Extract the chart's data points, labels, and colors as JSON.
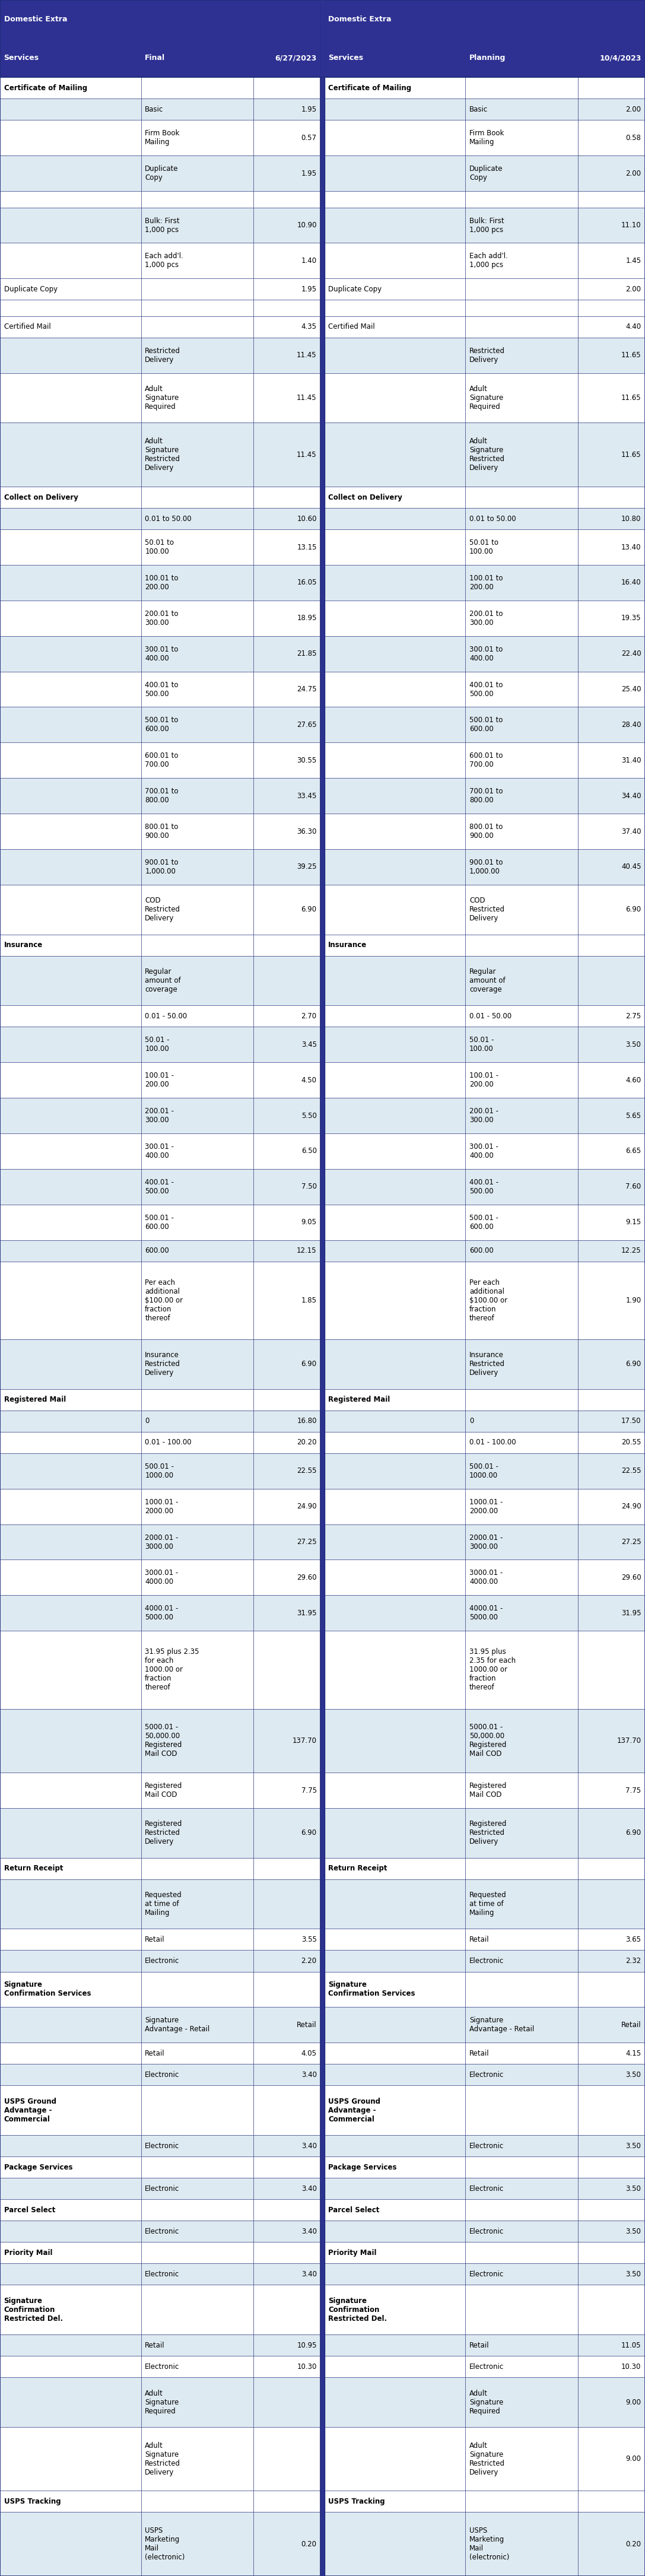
{
  "header_bg": "#2e3192",
  "header_text": "#ffffff",
  "row_bg_light": "#deeaf1",
  "row_bg_white": "#ffffff",
  "border_color": "#1f2d7a",
  "text_color": "#000000",
  "FIG_W": 10.87,
  "FIG_H": 43.41,
  "rows": [
    {
      "type": "section",
      "col1": "Certificate of Mailing",
      "col4": "Certificate of Mailing",
      "shade": false
    },
    {
      "type": "data",
      "col2": "Basic",
      "col3": "1.95",
      "col5": "Basic",
      "col6": "2.00",
      "shade": true
    },
    {
      "type": "data",
      "col2": "Firm Book\nMailing",
      "col3": "0.57",
      "col5": "Firm Book\nMailing",
      "col6": "0.58",
      "shade": false
    },
    {
      "type": "data",
      "col2": "Duplicate\nCopy",
      "col3": "1.95",
      "col5": "Duplicate\nCopy",
      "col6": "2.00",
      "shade": true
    },
    {
      "type": "empty",
      "shade": false
    },
    {
      "type": "data",
      "col2": "Bulk: First\n1,000 pcs",
      "col3": "10.90",
      "col5": "Bulk: First\n1,000 pcs",
      "col6": "11.10",
      "shade": true
    },
    {
      "type": "data",
      "col2": "Each add'l.\n1,000 pcs",
      "col3": "1.40",
      "col5": "Each add'l.\n1,000 pcs",
      "col6": "1.45",
      "shade": false
    },
    {
      "type": "section_val",
      "col1": "Duplicate Copy",
      "col3": "1.95",
      "col4": "Duplicate Copy",
      "col6": "2.00",
      "shade": false
    },
    {
      "type": "empty",
      "shade": false
    },
    {
      "type": "section_val",
      "col1": "Certified Mail",
      "col3": "4.35",
      "col4": "Certified Mail",
      "col6": "4.40",
      "shade": false
    },
    {
      "type": "data",
      "col2": "Restricted\nDelivery",
      "col3": "11.45",
      "col5": "Restricted\nDelivery",
      "col6": "11.65",
      "shade": true
    },
    {
      "type": "data",
      "col2": "Adult\nSignature\nRequired",
      "col3": "11.45",
      "col5": "Adult\nSignature\nRequired",
      "col6": "11.65",
      "shade": false
    },
    {
      "type": "data",
      "col2": "Adult\nSignature\nRestricted\nDelivery",
      "col3": "11.45",
      "col5": "Adult\nSignature\nRestricted\nDelivery",
      "col6": "11.65",
      "shade": true
    },
    {
      "type": "section",
      "col1": "Collect on Delivery",
      "col4": "Collect on Delivery",
      "shade": false
    },
    {
      "type": "data",
      "col2": "0.01 to 50.00",
      "col3": "10.60",
      "col5": "0.01 to 50.00",
      "col6": "10.80",
      "shade": true
    },
    {
      "type": "data",
      "col2": "50.01 to\n100.00",
      "col3": "13.15",
      "col5": "50.01 to\n100.00",
      "col6": "13.40",
      "shade": false
    },
    {
      "type": "data",
      "col2": "100.01 to\n200.00",
      "col3": "16.05",
      "col5": "100.01 to\n200.00",
      "col6": "16.40",
      "shade": true
    },
    {
      "type": "data",
      "col2": "200.01 to\n300.00",
      "col3": "18.95",
      "col5": "200.01 to\n300.00",
      "col6": "19.35",
      "shade": false
    },
    {
      "type": "data",
      "col2": "300.01 to\n400.00",
      "col3": "21.85",
      "col5": "300.01 to\n400.00",
      "col6": "22.40",
      "shade": true
    },
    {
      "type": "data",
      "col2": "400.01 to\n500.00",
      "col3": "24.75",
      "col5": "400.01 to\n500.00",
      "col6": "25.40",
      "shade": false
    },
    {
      "type": "data",
      "col2": "500.01 to\n600.00",
      "col3": "27.65",
      "col5": "500.01 to\n600.00",
      "col6": "28.40",
      "shade": true
    },
    {
      "type": "data",
      "col2": "600.01 to\n700.00",
      "col3": "30.55",
      "col5": "600.01 to\n700.00",
      "col6": "31.40",
      "shade": false
    },
    {
      "type": "data",
      "col2": "700.01 to\n800.00",
      "col3": "33.45",
      "col5": "700.01 to\n800.00",
      "col6": "34.40",
      "shade": true
    },
    {
      "type": "data",
      "col2": "800.01 to\n900.00",
      "col3": "36.30",
      "col5": "800.01 to\n900.00",
      "col6": "37.40",
      "shade": false
    },
    {
      "type": "data",
      "col2": "900.01 to\n1,000.00",
      "col3": "39.25",
      "col5": "900.01 to\n1,000.00",
      "col6": "40.45",
      "shade": true
    },
    {
      "type": "data",
      "col2": "COD\nRestricted\nDelivery",
      "col3": "6.90",
      "col5": "COD\nRestricted\nDelivery",
      "col6": "6.90",
      "shade": false
    },
    {
      "type": "section",
      "col1": "Insurance",
      "col4": "Insurance",
      "shade": false
    },
    {
      "type": "data",
      "col2": "Regular\namount of\ncoverage",
      "col3": "",
      "col5": "Regular\namount of\ncoverage",
      "col6": "",
      "shade": true
    },
    {
      "type": "data",
      "col2": "0.01 - 50.00",
      "col3": "2.70",
      "col5": "0.01 - 50.00",
      "col6": "2.75",
      "shade": false
    },
    {
      "type": "data",
      "col2": "50.01 -\n100.00",
      "col3": "3.45",
      "col5": "50.01 -\n100.00",
      "col6": "3.50",
      "shade": true
    },
    {
      "type": "data",
      "col2": "100.01 -\n200.00",
      "col3": "4.50",
      "col5": "100.01 -\n200.00",
      "col6": "4.60",
      "shade": false
    },
    {
      "type": "data",
      "col2": "200.01 -\n300.00",
      "col3": "5.50",
      "col5": "200.01 -\n300.00",
      "col6": "5.65",
      "shade": true
    },
    {
      "type": "data",
      "col2": "300.01 -\n400.00",
      "col3": "6.50",
      "col5": "300.01 -\n400.00",
      "col6": "6.65",
      "shade": false
    },
    {
      "type": "data",
      "col2": "400.01 -\n500.00",
      "col3": "7.50",
      "col5": "400.01 -\n500.00",
      "col6": "7.60",
      "shade": true
    },
    {
      "type": "data",
      "col2": "500.01 -\n600.00",
      "col3": "9.05",
      "col5": "500.01 -\n600.00",
      "col6": "9.15",
      "shade": false
    },
    {
      "type": "data",
      "col2": "600.00",
      "col3": "12.15",
      "col5": "600.00",
      "col6": "12.25",
      "shade": true
    },
    {
      "type": "data",
      "col2": "Per each\nadditional\n$100.00 or\nfraction\nthereof",
      "col3": "1.85",
      "col5": "Per each\nadditional\n$100.00 or\nfraction\nthereof",
      "col6": "1.90",
      "shade": false
    },
    {
      "type": "data",
      "col2": "Insurance\nRestricted\nDelivery",
      "col3": "6.90",
      "col5": "Insurance\nRestricted\nDelivery",
      "col6": "6.90",
      "shade": true
    },
    {
      "type": "section",
      "col1": "Registered Mail",
      "col4": "Registered Mail",
      "shade": false
    },
    {
      "type": "data",
      "col2": "0",
      "col3": "16.80",
      "col5": "0",
      "col6": "17.50",
      "shade": true
    },
    {
      "type": "data",
      "col2": "0.01 - 100.00",
      "col3": "20.20",
      "col5": "0.01 - 100.00",
      "col6": "20.55",
      "shade": false
    },
    {
      "type": "data",
      "col2": "500.01 -\n1000.00",
      "col3": "22.55",
      "col5": "500.01 -\n1000.00",
      "col6": "22.55",
      "shade": true
    },
    {
      "type": "data",
      "col2": "1000.01 -\n2000.00",
      "col3": "24.90",
      "col5": "1000.01 -\n2000.00",
      "col6": "24.90",
      "shade": false
    },
    {
      "type": "data",
      "col2": "2000.01 -\n3000.00",
      "col3": "27.25",
      "col5": "2000.01 -\n3000.00",
      "col6": "27.25",
      "shade": true
    },
    {
      "type": "data",
      "col2": "3000.01 -\n4000.00",
      "col3": "29.60",
      "col5": "3000.01 -\n4000.00",
      "col6": "29.60",
      "shade": false
    },
    {
      "type": "data",
      "col2": "4000.01 -\n5000.00",
      "col3": "31.95",
      "col5": "4000.01 -\n5000.00",
      "col6": "31.95",
      "shade": true
    },
    {
      "type": "data",
      "col2": "31.95 plus 2.35\nfor each\n1000.00 or\nfraction\nthereof",
      "col3": "",
      "col5": "31.95 plus\n2.35 for each\n1000.00 or\nfraction\nthereof",
      "col6": "",
      "shade": false
    },
    {
      "type": "data",
      "col2": "5000.01 -\n50,000.00\nRegistered\nMail COD",
      "col3": "137.70",
      "col5": "5000.01 -\n50,000.00\nRegistered\nMail COD",
      "col6": "137.70",
      "shade": true
    },
    {
      "type": "data",
      "col2": "Registered\nMail COD",
      "col3": "7.75",
      "col5": "Registered\nMail COD",
      "col6": "7.75",
      "shade": false
    },
    {
      "type": "data",
      "col2": "Registered\nRestricted\nDelivery",
      "col3": "6.90",
      "col5": "Registered\nRestricted\nDelivery",
      "col6": "6.90",
      "shade": true
    },
    {
      "type": "section",
      "col1": "Return Receipt",
      "col4": "Return Receipt",
      "shade": false
    },
    {
      "type": "data",
      "col2": "Requested\nat time of\nMailing",
      "col3": "",
      "col5": "Requested\nat time of\nMailing",
      "col6": "",
      "shade": true
    },
    {
      "type": "data",
      "col2": "Retail",
      "col3": "3.55",
      "col5": "Retail",
      "col6": "3.65",
      "shade": false
    },
    {
      "type": "data",
      "col2": "Electronic",
      "col3": "2.20",
      "col5": "Electronic",
      "col6": "2.32",
      "shade": true
    },
    {
      "type": "section",
      "col1": "Signature\nConfirmation Services",
      "col4": "Signature\nConfirmation Services",
      "shade": false
    },
    {
      "type": "data",
      "col2": "Signature\nAdvantage - Retail",
      "col3": "Retail",
      "col5": "Signature\nAdvantage - Retail",
      "col6": "Retail",
      "shade": true
    },
    {
      "type": "data",
      "col2": "Retail",
      "col3": "4.05",
      "col5": "Retail",
      "col6": "4.15",
      "shade": false
    },
    {
      "type": "data",
      "col2": "Electronic",
      "col3": "3.40",
      "col5": "Electronic",
      "col6": "3.50",
      "shade": true
    },
    {
      "type": "section",
      "col1": "USPS Ground\nAdvantage -\nCommercial",
      "col4": "USPS Ground\nAdvantage -\nCommercial",
      "shade": false
    },
    {
      "type": "data",
      "col2": "Electronic",
      "col3": "3.40",
      "col5": "Electronic",
      "col6": "3.50",
      "shade": true
    },
    {
      "type": "section",
      "col1": "Package Services",
      "col4": "Package Services",
      "shade": false
    },
    {
      "type": "data",
      "col2": "Electronic",
      "col3": "3.40",
      "col5": "Electronic",
      "col6": "3.50",
      "shade": true
    },
    {
      "type": "section",
      "col1": "Parcel Select",
      "col4": "Parcel Select",
      "shade": false
    },
    {
      "type": "data",
      "col2": "Electronic",
      "col3": "3.40",
      "col5": "Electronic",
      "col6": "3.50",
      "shade": true
    },
    {
      "type": "section",
      "col1": "Priority Mail",
      "col4": "Priority Mail",
      "shade": false
    },
    {
      "type": "data",
      "col2": "Electronic",
      "col3": "3.40",
      "col5": "Electronic",
      "col6": "3.50",
      "shade": true
    },
    {
      "type": "section",
      "col1": "Signature\nConfirmation\nRestricted Del.",
      "col4": "Signature\nConfirmation\nRestricted Del.",
      "shade": false
    },
    {
      "type": "data",
      "col2": "Retail",
      "col3": "10.95",
      "col5": "Retail",
      "col6": "11.05",
      "shade": true
    },
    {
      "type": "data",
      "col2": "Electronic",
      "col3": "10.30",
      "col5": "Electronic",
      "col6": "10.30",
      "shade": false
    },
    {
      "type": "data",
      "col2": "Adult\nSignature\nRequired",
      "col3": "",
      "col5": "Adult\nSignature\nRequired",
      "col6": "9.00",
      "shade": true
    },
    {
      "type": "data",
      "col2": "Adult\nSignature\nRestricted\nDelivery",
      "col3": "",
      "col5": "Adult\nSignature\nRestricted\nDelivery",
      "col6": "9.00",
      "shade": false
    },
    {
      "type": "section",
      "col1": "USPS Tracking",
      "col4": "USPS Tracking",
      "shade": false
    },
    {
      "type": "data",
      "col2": "USPS\nMarketing\nMail\n(electronic)",
      "col3": "0.20",
      "col5": "USPS\nMarketing\nMail\n(electronic)",
      "col6": "0.20",
      "shade": true
    }
  ]
}
